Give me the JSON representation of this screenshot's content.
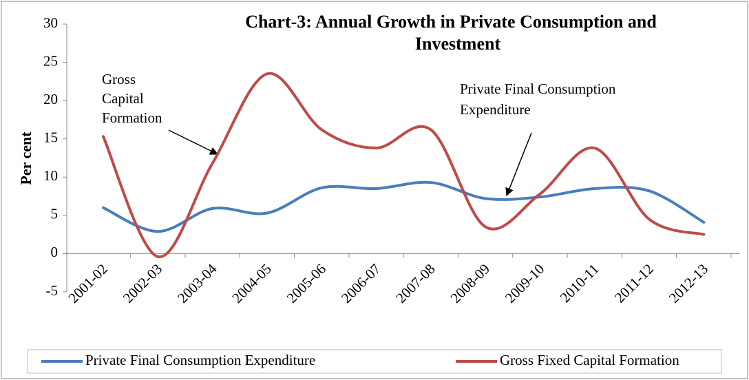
{
  "chart_data": {
    "type": "line",
    "title": [
      "Chart-3: Annual Growth  in Private Consumption and",
      "Investment"
    ],
    "y_label": "Per cent",
    "categories": [
      "2001-02",
      "2002-03",
      "2003-04",
      "2004-05",
      "2005-06",
      "2006-07",
      "2007-08",
      "2008-09",
      "2009-10",
      "2010-11",
      "2011-12",
      "2012-13"
    ],
    "series": [
      {
        "name": "Private Final Consumption Expenditure",
        "color": "#4a7ebb",
        "values": [
          6.0,
          2.9,
          5.9,
          5.3,
          8.6,
          8.5,
          9.3,
          7.2,
          7.4,
          8.5,
          8.2,
          4.1
        ]
      },
      {
        "name": "Gross Fixed Capital Formation",
        "color": "#be4b48",
        "values": [
          15.3,
          -0.4,
          11.8,
          23.5,
          16.2,
          13.8,
          16.2,
          3.5,
          7.8,
          13.8,
          4.5,
          2.5
        ]
      }
    ],
    "annotations": [
      {
        "lines": [
          "Gross",
          "Capital",
          "Formation"
        ]
      },
      {
        "lines": [
          "Private Final Consumption",
          "Expenditure"
        ]
      }
    ],
    "ylim": [
      -5,
      30
    ],
    "yticks": [
      -5,
      0,
      5,
      10,
      15,
      20,
      25,
      30
    ],
    "grid": false,
    "legend": "bottom"
  }
}
